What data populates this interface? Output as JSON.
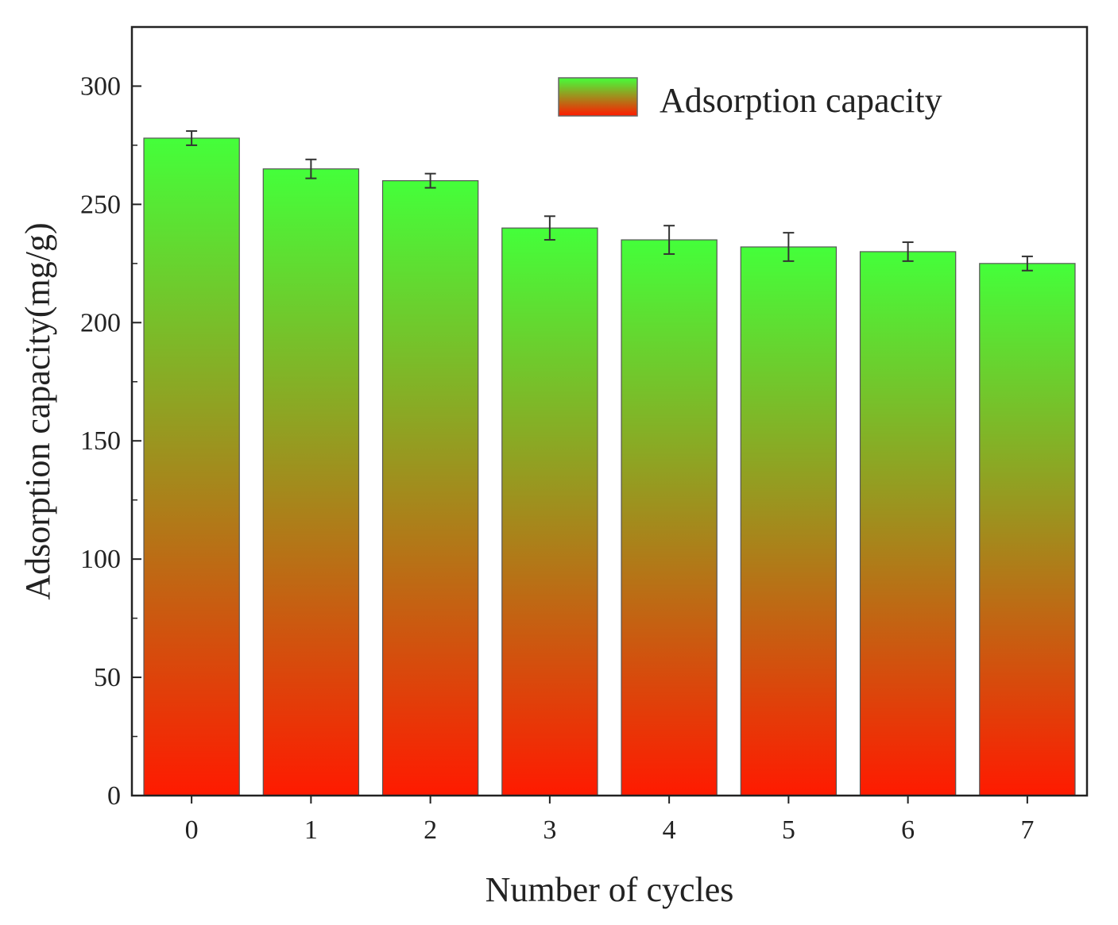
{
  "chart_data": {
    "type": "bar",
    "title": "",
    "xlabel": "Number of cycles",
    "ylabel": "Adsorption capacity(mg/g)",
    "categories": [
      "0",
      "1",
      "2",
      "3",
      "4",
      "5",
      "6",
      "7"
    ],
    "series": [
      {
        "name": "Adsorption capacity",
        "values": [
          278,
          265,
          260,
          240,
          235,
          232,
          230,
          225
        ],
        "errors": [
          3,
          4,
          3,
          5,
          6,
          6,
          4,
          3
        ]
      }
    ],
    "ylim": [
      0,
      325
    ],
    "yticks": [
      0,
      50,
      100,
      150,
      200,
      250,
      300
    ],
    "grid": false,
    "legend_position": "top-right",
    "colors": {
      "bar_top": "#44ff3a",
      "bar_bottom": "#ff1a00",
      "axis": "#222222"
    }
  }
}
